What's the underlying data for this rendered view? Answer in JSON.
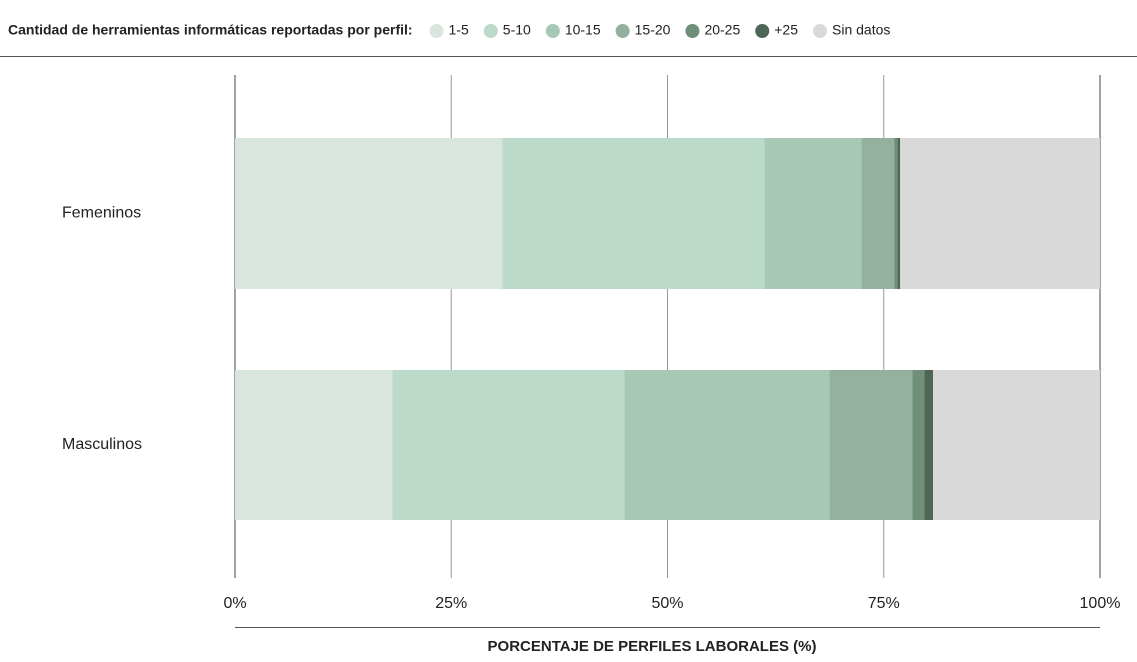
{
  "chart_data": {
    "type": "stacked-barh",
    "legend_title": "Cantidad de herramientas informáticas reportadas por perfil:",
    "categories": [
      "Femeninos",
      "Masculinos"
    ],
    "series": [
      {
        "name": "1-5",
        "color": "#d8e6de",
        "values": [
          30.9,
          18.2
        ]
      },
      {
        "name": "5-10",
        "color": "#bcdac9",
        "values": [
          30.3,
          26.8
        ]
      },
      {
        "name": "10-15",
        "color": "#a6c8b5",
        "values": [
          11.2,
          23.7
        ]
      },
      {
        "name": "15-20",
        "color": "#93b19e",
        "values": [
          3.8,
          9.6
        ]
      },
      {
        "name": "20-25",
        "color": "#6f8f7b",
        "values": [
          0.4,
          1.4
        ]
      },
      {
        "name": "+25",
        "color": "#4f6656",
        "values": [
          0.3,
          1.0
        ]
      },
      {
        "name": "Sin datos",
        "color": "#d9d9d9",
        "values": [
          23.1,
          19.3
        ]
      }
    ],
    "xlim": [
      0,
      100
    ],
    "xticks": [
      {
        "value": 0,
        "label": "0%"
      },
      {
        "value": 25,
        "label": "25%"
      },
      {
        "value": 50,
        "label": "50%"
      },
      {
        "value": 75,
        "label": "75%"
      },
      {
        "value": 100,
        "label": "100%"
      }
    ],
    "xlabel": "PORCENTAJE DE PERFILES LABORALES (%)",
    "grid": true,
    "legend": "top"
  }
}
